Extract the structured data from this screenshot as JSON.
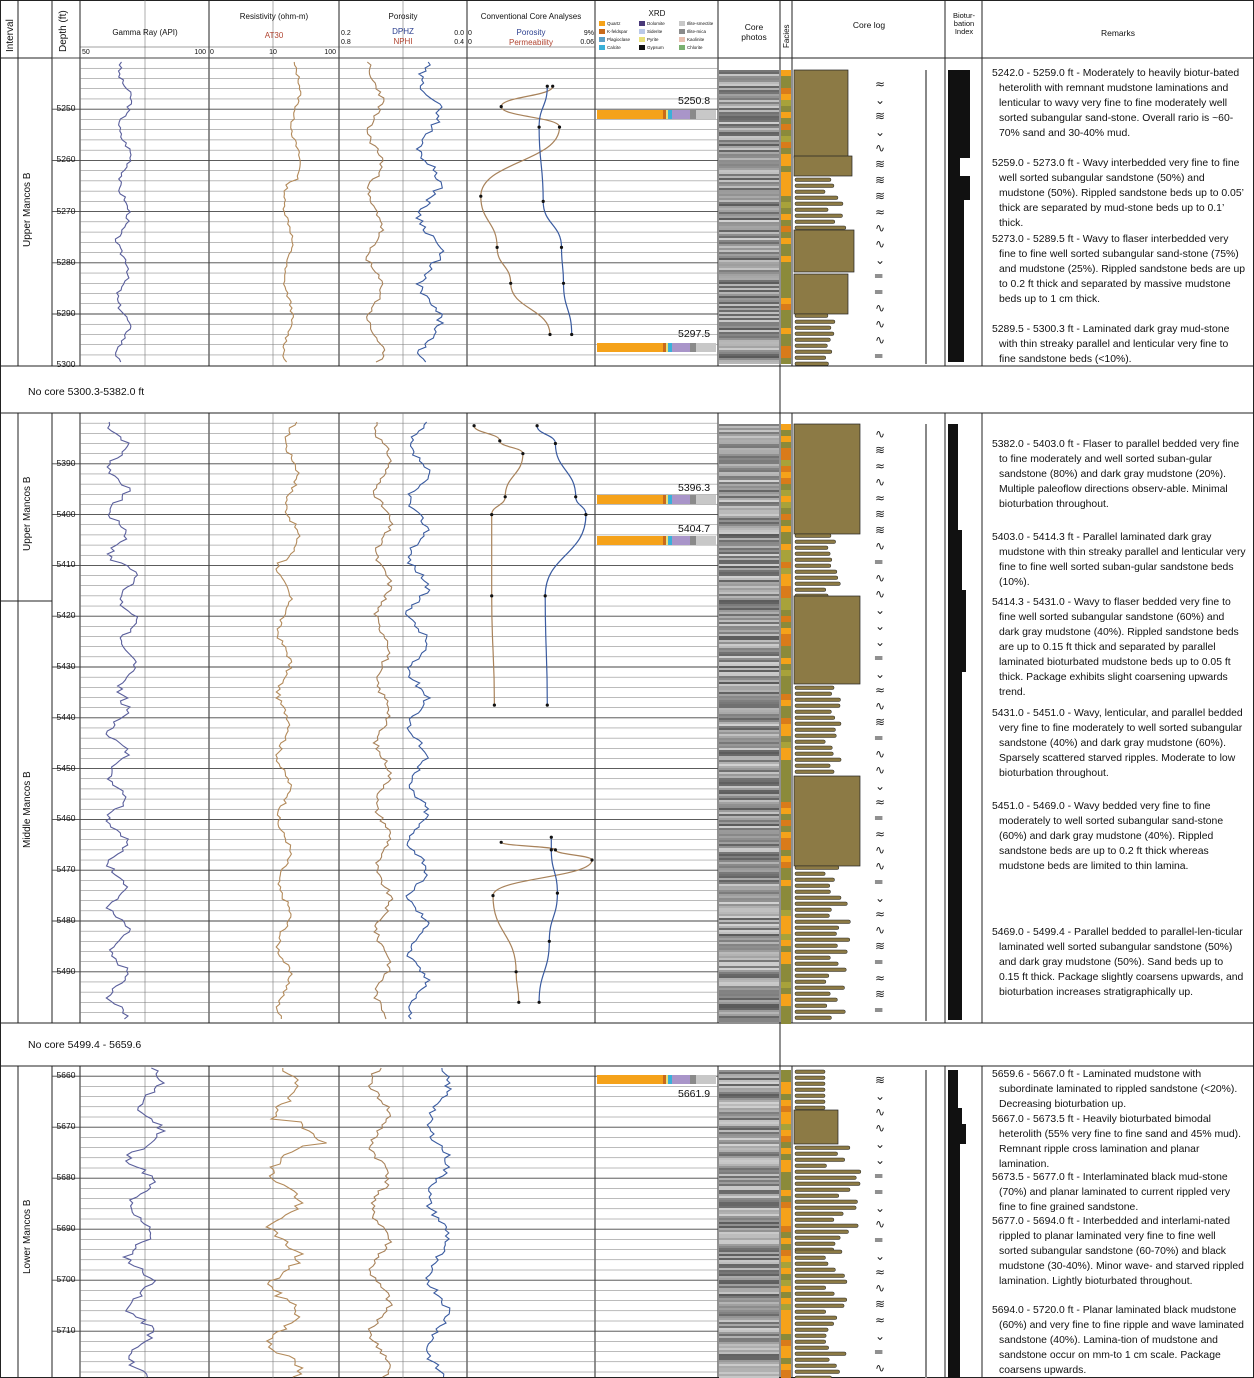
{
  "header": {
    "interval": "Interval",
    "depth": "Depth (ft)",
    "gamma": {
      "title": "Gamma Ray (API)",
      "min": "50",
      "max": "100"
    },
    "resistivity": {
      "title": "Resistivity (ohm-m)",
      "curve": "AT30",
      "ticks": [
        "0",
        "10",
        "100"
      ]
    },
    "porosity": {
      "title": "Porosity",
      "curve1": "DPHZ",
      "curve2": "NPHI",
      "left1": "0.2",
      "left2": "0.8",
      "right1": "0.0",
      "right2": "0.4"
    },
    "core_analyses": {
      "title": "Conventional Core Analyses",
      "porosity": "Porosity",
      "permeability": "Permeability",
      "left": "0",
      "right_por": "9%",
      "right_perm": "0.06",
      "left_perm": "0"
    },
    "xrd": {
      "title": "XRD",
      "legend": [
        "Quartz",
        "Dolomite",
        "Illite-smectite",
        "K-feldspar",
        "Siderite",
        "Illite-mica",
        "Plagioclase",
        "Pyrite",
        "Kaolinite",
        "Calcite",
        "Gypsum",
        "Chlorite"
      ]
    },
    "core_photos": "Core photos",
    "facies": "Facies",
    "core_log": "Core log",
    "bioturbation": "Biotur-bation Index",
    "remarks": "Remarks"
  },
  "intervals": [
    "Upper Mancos B",
    "Upper Mancos B",
    "Middle Mancos B",
    "Lower Mancos B"
  ],
  "gaps": [
    "No core 5300.3-5382.0 ft",
    "No core 5499.4 - 5659.6"
  ],
  "depths": {
    "s1": [
      "5250",
      "5260",
      "5270",
      "5280",
      "5290",
      "5300"
    ],
    "s2": [
      "5390",
      "5400",
      "5410",
      "5420",
      "5430",
      "5440",
      "5450",
      "5460",
      "5470",
      "5480",
      "5490"
    ],
    "s3": [
      "5660",
      "5670",
      "5680",
      "5690",
      "5700",
      "5710"
    ]
  },
  "xrd_samples": [
    "5250.8",
    "5297.5",
    "5396.3",
    "5404.7",
    "5661.9"
  ],
  "remarks": {
    "s1": [
      "5242.0 - 5259.0 ft - Moderately to heavily biotur-bated heterolith with remnant mudstone laminations and lenticular to wavy very fine to fine moderately well sorted subangular sand-stone. Overall rario is ~60-70% sand and 30-40% mud.",
      "5259.0 - 5273.0 ft - Wavy interbedded very fine to fine well sorted subangular sandstone (50%) and mudstone (50%). Rippled sandstone beds up to 0.05’ thick are separated by mud-stone beds up to 0.1’ thick.",
      "5273.0 - 5289.5 ft - Wavy to flaser interbedded very fine to fine well sorted subangular sand-stone (75%) and mudstone (25%). Rippled sandstone beds are up to 0.2 ft thick and separated by massive mudstone beds up to 1 cm thick.",
      "5289.5 - 5300.3 ft - Laminated dark gray mud-stone with thin streaky parallel and lenticular very fine to fine sandstone beds (<10%)."
    ],
    "s2": [
      "5382.0 - 5403.0 ft - Flaser to parallel bedded very fine to fine moderately and well sorted suban-gular sandstone (80%) and dark gray mudstone (20%). Multiple paleoflow directions observ-able. Minimal bioturbation throughout.",
      "5403.0 - 5414.3 ft - Parallel laminated dark gray mudstone with thin streaky parallel and lenticular very fine to fine well sorted suban-gular sandstone beds (10%).",
      "5414.3 - 5431.0 - Wavy to flaser bedded very fine to fine well sorted subangular sandstone (60%) and dark gray mudstone (40%). Rippled sandstone beds are up to 0.15 ft thick and separated by parallel laminated bioturbated mudstone beds up to 0.05 ft thick. Package exhibits slight coarsening upwards trend.",
      "5431.0 - 5451.0 - Wavy, lenticular, and parallel bedded very fine to fine moderately to well sorted subangular sandstone (40%) and dark gray mudstone (60%). Sparsely scattered starved ripples. Moderate to low bioturbation throughout.",
      "5451.0 - 5469.0 - Wavy bedded very fine to fine moderately to well sorted subangular sand-stone (60%) and dark gray mudstone (40%). Rippled sandstone beds are up to 0.2 ft thick whereas mudstone beds are limited to thin lamina.",
      "5469.0 - 5499.4 - Parallel bedded to parallel-len-ticular laminated well sorted subangular sandstone (50%) and dark gray mudstone (50%). Sand beds up to 0.15 ft thick. Package slightly coarsens upwards, and bioturbation increases stratigraphically up."
    ],
    "s3": [
      "5659.6 - 5667.0 ft - Laminated mudstone with subordinate laminated to rippled sandstone (<20%). Decreasing bioturbation up.",
      "5667.0 - 5673.5 ft - Heavily bioturbated bimodal heterolith (55% very fine to fine sand and 45% mud). Remnant ripple cross lamination and planar lamination.",
      "5673.5 - 5677.0 ft - Interlaminated black mud-stone (70%) and planar laminated to current rippled very fine to fine grained sandstone.",
      "5677.0 - 5694.0 ft - Interbedded and interlami-nated rippled to planar laminated very fine to fine well sorted subangular sandstone (60-70%) and black mudstone (30-40%). Minor wave- and starved rippled lamination. Lightly bioturbated throughout.",
      "5694.0 - 5720.0 ft - Planar laminated black mudstone (60%) and very fine to fine ripple and wave laminated sandstone (40%). Lamina-tion of mudstone and sandstone occur on mm-to 1 cm scale. Package coarsens upwards."
    ]
  },
  "core_analysis_points": {
    "s1": {
      "porosity": [
        [
          5245.5,
          6.1
        ],
        [
          5249.5,
          2.3
        ],
        [
          5253.5,
          6.6
        ],
        [
          5267,
          0.8
        ],
        [
          5277,
          2.0
        ],
        [
          5284,
          3.0
        ],
        [
          5294,
          5.9
        ]
      ],
      "permeability": [
        [
          5245.5,
          0.038
        ],
        [
          5253.5,
          0.034
        ],
        [
          5268,
          0.036
        ],
        [
          5277,
          0.045
        ],
        [
          5284,
          0.046
        ],
        [
          5294,
          0.05
        ]
      ]
    },
    "s2": {
      "porosity": [
        [
          5382.5,
          0.3
        ],
        [
          5385.5,
          2.2
        ],
        [
          5388,
          3.9
        ],
        [
          5396.5,
          2.6
        ],
        [
          5400,
          1.6
        ],
        [
          5416,
          1.6
        ],
        [
          5437.5,
          1.8
        ]
      ],
      "permeability": [
        [
          5382.5,
          0.033
        ],
        [
          5386,
          0.042
        ],
        [
          5396.5,
          0.052
        ],
        [
          5400,
          0.057
        ],
        [
          5416,
          0.037
        ],
        [
          5437.5,
          0.038
        ]
      ]
    },
    "s3": {
      "porosity": [
        [
          5464.5,
          2.3
        ],
        [
          5466,
          6.3
        ],
        [
          5468,
          9.0
        ],
        [
          5475,
          1.7
        ],
        [
          5490,
          3.4
        ],
        [
          5496,
          3.6
        ]
      ],
      "permeability": [
        [
          5463.5,
          0.04
        ],
        [
          5466,
          0.04
        ],
        [
          5474.5,
          0.043
        ],
        [
          5484,
          0.039
        ],
        [
          5496,
          0.034
        ]
      ]
    }
  },
  "colors": {
    "gamma": "#5a5f9c",
    "resistivity": "#b38a5a",
    "dphz": "#a8825a",
    "nphi": "#3a5ba0",
    "facies_yellow": "#f5a21a",
    "facies_olive": "#8b8a3a",
    "sand": "#8c7a45",
    "bio": "#111111"
  }
}
